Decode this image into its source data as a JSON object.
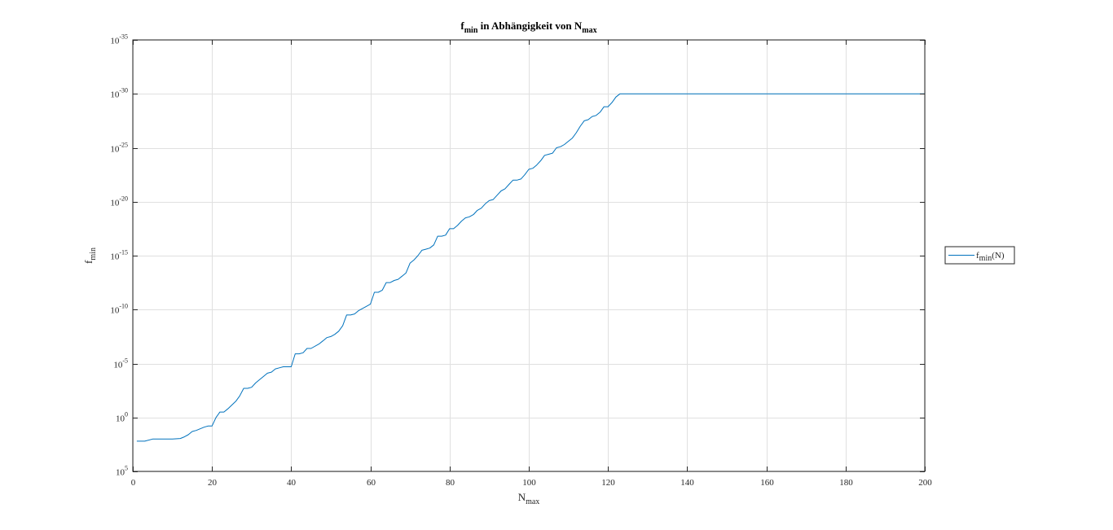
{
  "chart_data": {
    "type": "line",
    "title": {
      "main": "f",
      "main_sub": "min",
      "rest": " in Abhängigkeit von N",
      "rest_sub": "max"
    },
    "xlabel": {
      "main": "N",
      "sub": "max"
    },
    "ylabel": {
      "main": "f",
      "sub": "min"
    },
    "xlim": [
      0,
      200
    ],
    "xticks": [
      0,
      20,
      40,
      60,
      80,
      100,
      120,
      140,
      160,
      180,
      200
    ],
    "yscale": "log",
    "ylim_exponent": [
      -35,
      5
    ],
    "ytick_exponents": [
      5,
      0,
      -5,
      -10,
      -15,
      -20,
      -25,
      -30,
      -35
    ],
    "ytick_base": "10",
    "grid": true,
    "minor_grid": true,
    "legend_position": "outside-right",
    "series": [
      {
        "name": {
          "main": "f",
          "sub": "min",
          "suffix": "(N)"
        },
        "color": "#0072BD",
        "x": [
          1,
          3,
          5,
          8,
          10,
          12,
          13,
          14,
          15,
          16,
          18,
          19,
          20,
          21,
          22,
          23,
          24,
          26,
          27,
          28,
          29,
          30,
          31,
          32,
          33,
          34,
          35,
          36,
          37,
          38,
          39,
          40,
          41,
          42,
          43,
          44,
          45,
          47,
          48,
          49,
          50,
          51,
          52,
          53,
          54,
          55,
          56,
          57,
          58,
          59,
          60,
          61,
          62,
          63,
          64,
          65,
          66,
          67,
          68,
          69,
          70,
          71,
          72,
          73,
          74,
          75,
          76,
          77,
          78,
          79,
          80,
          81,
          82,
          83,
          84,
          85,
          86,
          87,
          88,
          89,
          90,
          91,
          92,
          93,
          94,
          95,
          96,
          97,
          98,
          99,
          100,
          101,
          102,
          103,
          104,
          105,
          106,
          107,
          108,
          109,
          110,
          111,
          112,
          113,
          114,
          115,
          116,
          117,
          118,
          119,
          120,
          121,
          122,
          123,
          124,
          200
        ],
        "log10_y": [
          2.2,
          2.2,
          2.0,
          2.0,
          2.0,
          1.95,
          1.8,
          1.6,
          1.3,
          1.2,
          0.9,
          0.8,
          0.8,
          0.0,
          -0.5,
          -0.5,
          -0.8,
          -1.5,
          -2.0,
          -2.7,
          -2.7,
          -2.8,
          -3.2,
          -3.5,
          -3.8,
          -4.1,
          -4.2,
          -4.5,
          -4.6,
          -4.7,
          -4.7,
          -4.7,
          -5.9,
          -5.9,
          -6.0,
          -6.4,
          -6.4,
          -6.8,
          -7.1,
          -7.4,
          -7.5,
          -7.7,
          -8.0,
          -8.5,
          -9.5,
          -9.5,
          -9.6,
          -9.9,
          -10.1,
          -10.3,
          -10.5,
          -11.6,
          -11.6,
          -11.8,
          -12.5,
          -12.5,
          -12.7,
          -12.8,
          -13.1,
          -13.4,
          -14.3,
          -14.6,
          -15.0,
          -15.5,
          -15.6,
          -15.7,
          -16.0,
          -16.8,
          -16.8,
          -16.9,
          -17.5,
          -17.5,
          -17.8,
          -18.2,
          -18.5,
          -18.6,
          -18.8,
          -19.2,
          -19.4,
          -19.8,
          -20.1,
          -20.2,
          -20.6,
          -21.0,
          -21.2,
          -21.6,
          -22.0,
          -22.0,
          -22.1,
          -22.5,
          -23.0,
          -23.1,
          -23.4,
          -23.8,
          -24.3,
          -24.4,
          -24.5,
          -25.0,
          -25.1,
          -25.3,
          -25.6,
          -25.9,
          -26.4,
          -27.0,
          -27.5,
          -27.6,
          -27.9,
          -28.0,
          -28.3,
          -28.8,
          -28.8,
          -29.2,
          -29.7,
          -30.0,
          -30.0,
          -30.0
        ]
      }
    ]
  }
}
